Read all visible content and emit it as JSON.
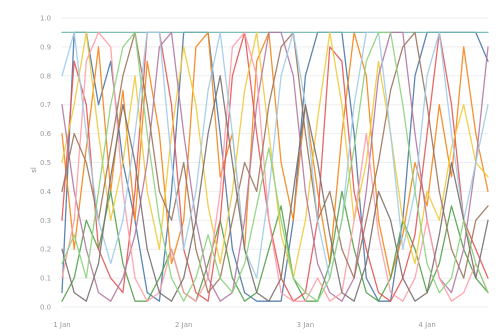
{
  "chart_data": {
    "type": "line",
    "ylabel": "sl",
    "ylim": [
      0,
      1
    ],
    "yticks": [
      "0.0",
      "0.1",
      "0.2",
      "0.3",
      "0.4",
      "0.5",
      "0.6",
      "0.7",
      "0.8",
      "0.9",
      "1.0"
    ],
    "xticks": [
      "1 Jan",
      "2 Jan",
      "3 Jan",
      "4 Jan"
    ],
    "xtick_positions": [
      0,
      1,
      2,
      3
    ],
    "xlim": [
      0,
      3.5
    ],
    "x": [
      0,
      0.1,
      0.2,
      0.3,
      0.4,
      0.5,
      0.6,
      0.7,
      0.8,
      0.9,
      1.0,
      1.1,
      1.2,
      1.3,
      1.4,
      1.5,
      1.6,
      1.7,
      1.8,
      1.9,
      2.0,
      2.1,
      2.2,
      2.3,
      2.4,
      2.5,
      2.6,
      2.7,
      2.8,
      2.9,
      3.0,
      3.1,
      3.2,
      3.3,
      3.4,
      3.5
    ],
    "series": [
      {
        "color": "#4c78a8",
        "values": [
          0.05,
          0.95,
          0.95,
          0.7,
          0.85,
          0.5,
          0.3,
          0.05,
          0.02,
          0.4,
          0.95,
          0.95,
          0.95,
          0.6,
          0.2,
          0.05,
          0.02,
          0.02,
          0.02,
          0.3,
          0.8,
          0.95,
          0.95,
          0.95,
          0.6,
          0.1,
          0.02,
          0.02,
          0.3,
          0.8,
          0.95,
          0.95,
          0.95,
          0.95,
          0.95,
          0.85
        ]
      },
      {
        "color": "#f58518",
        "values": [
          0.6,
          0.2,
          0.55,
          0.9,
          0.4,
          0.75,
          0.3,
          0.85,
          0.6,
          0.15,
          0.3,
          0.9,
          0.95,
          0.45,
          0.6,
          0.2,
          0.85,
          0.95,
          0.5,
          0.3,
          0.7,
          0.4,
          0.15,
          0.6,
          0.95,
          0.8,
          0.3,
          0.1,
          0.25,
          0.5,
          0.35,
          0.7,
          0.45,
          0.9,
          0.6,
          0.4
        ]
      },
      {
        "color": "#54a24b",
        "values": [
          0.02,
          0.1,
          0.3,
          0.2,
          0.4,
          0.15,
          0.02,
          0.02,
          0.1,
          0.2,
          0.05,
          0.02,
          0.15,
          0.3,
          0.1,
          0.02,
          0.05,
          0.2,
          0.35,
          0.1,
          0.02,
          0.02,
          0.15,
          0.4,
          0.2,
          0.05,
          0.02,
          0.1,
          0.3,
          0.2,
          0.05,
          0.15,
          0.35,
          0.2,
          0.1,
          0.05
        ]
      },
      {
        "color": "#e45756",
        "values": [
          0.3,
          0.85,
          0.7,
          0.2,
          0.1,
          0.05,
          0.4,
          0.95,
          0.95,
          0.7,
          0.2,
          0.05,
          0.02,
          0.3,
          0.8,
          0.95,
          0.6,
          0.3,
          0.1,
          0.02,
          0.05,
          0.3,
          0.9,
          0.85,
          0.4,
          0.2,
          0.05,
          0.02,
          0.1,
          0.25,
          0.6,
          0.95,
          0.7,
          0.3,
          0.2,
          0.1
        ]
      },
      {
        "color": "#72b7b2",
        "values": [
          0.95,
          0.95,
          0.95,
          0.95,
          0.95,
          0.95,
          0.95,
          0.95,
          0.95,
          0.95,
          0.95,
          0.95,
          0.95,
          0.95,
          0.95,
          0.95,
          0.95,
          0.95,
          0.95,
          0.95,
          0.95,
          0.95,
          0.95,
          0.95,
          0.95,
          0.95,
          0.95,
          0.95,
          0.95,
          0.95,
          0.95,
          0.95,
          0.95,
          0.95,
          0.95,
          0.95
        ]
      },
      {
        "color": "#eeca3b",
        "values": [
          0.5,
          0.7,
          0.95,
          0.6,
          0.3,
          0.5,
          0.8,
          0.4,
          0.2,
          0.6,
          0.9,
          0.7,
          0.35,
          0.15,
          0.4,
          0.75,
          0.95,
          0.6,
          0.25,
          0.1,
          0.3,
          0.65,
          0.95,
          0.7,
          0.3,
          0.5,
          0.85,
          0.6,
          0.3,
          0.15,
          0.4,
          0.3,
          0.55,
          0.7,
          0.5,
          0.45
        ]
      },
      {
        "color": "#b279a2",
        "values": [
          0.7,
          0.4,
          0.2,
          0.05,
          0.02,
          0.1,
          0.25,
          0.5,
          0.9,
          0.95,
          0.6,
          0.3,
          0.1,
          0.02,
          0.05,
          0.3,
          0.7,
          0.95,
          0.95,
          0.8,
          0.4,
          0.15,
          0.05,
          0.02,
          0.1,
          0.4,
          0.8,
          0.95,
          0.95,
          0.6,
          0.3,
          0.1,
          0.05,
          0.2,
          0.5,
          0.9
        ]
      },
      {
        "color": "#ff9da6",
        "values": [
          0.1,
          0.3,
          0.85,
          0.95,
          0.9,
          0.4,
          0.1,
          0.02,
          0.05,
          0.2,
          0.05,
          0.02,
          0.1,
          0.4,
          0.9,
          0.95,
          0.8,
          0.3,
          0.05,
          0.02,
          0.02,
          0.1,
          0.02,
          0.05,
          0.3,
          0.6,
          0.25,
          0.05,
          0.02,
          0.1,
          0.3,
          0.1,
          0.02,
          0.05,
          0.15,
          0.05
        ]
      },
      {
        "color": "#9d755d",
        "values": [
          0.4,
          0.6,
          0.5,
          0.3,
          0.55,
          0.8,
          0.95,
          0.7,
          0.4,
          0.3,
          0.5,
          0.2,
          0.05,
          0.1,
          0.3,
          0.5,
          0.4,
          0.7,
          0.9,
          0.95,
          0.6,
          0.3,
          0.4,
          0.2,
          0.1,
          0.3,
          0.5,
          0.75,
          0.9,
          0.95,
          0.7,
          0.4,
          0.2,
          0.1,
          0.3,
          0.35
        ]
      },
      {
        "color": "#a0cbe8",
        "values": [
          0.8,
          0.95,
          0.6,
          0.3,
          0.15,
          0.3,
          0.6,
          0.95,
          0.95,
          0.5,
          0.2,
          0.4,
          0.75,
          0.95,
          0.6,
          0.2,
          0.1,
          0.4,
          0.8,
          0.95,
          0.7,
          0.3,
          0.1,
          0.3,
          0.7,
          0.95,
          0.95,
          0.6,
          0.2,
          0.4,
          0.8,
          0.95,
          0.6,
          0.3,
          0.5,
          0.7
        ]
      },
      {
        "color": "#79706e",
        "values": [
          0.2,
          0.05,
          0.02,
          0.15,
          0.45,
          0.7,
          0.5,
          0.2,
          0.05,
          0.02,
          0.1,
          0.3,
          0.6,
          0.8,
          0.5,
          0.2,
          0.05,
          0.02,
          0.1,
          0.4,
          0.7,
          0.5,
          0.25,
          0.05,
          0.02,
          0.15,
          0.4,
          0.3,
          0.1,
          0.02,
          0.05,
          0.25,
          0.5,
          0.3,
          0.1,
          0.3
        ]
      },
      {
        "color": "#8cd17d",
        "values": [
          0.15,
          0.25,
          0.1,
          0.4,
          0.7,
          0.9,
          0.95,
          0.6,
          0.3,
          0.1,
          0.02,
          0.1,
          0.25,
          0.1,
          0.05,
          0.15,
          0.35,
          0.55,
          0.3,
          0.1,
          0.05,
          0.02,
          0.1,
          0.3,
          0.55,
          0.85,
          0.95,
          0.95,
          0.7,
          0.4,
          0.15,
          0.05,
          0.1,
          0.3,
          0.15,
          0.05
        ]
      }
    ]
  }
}
